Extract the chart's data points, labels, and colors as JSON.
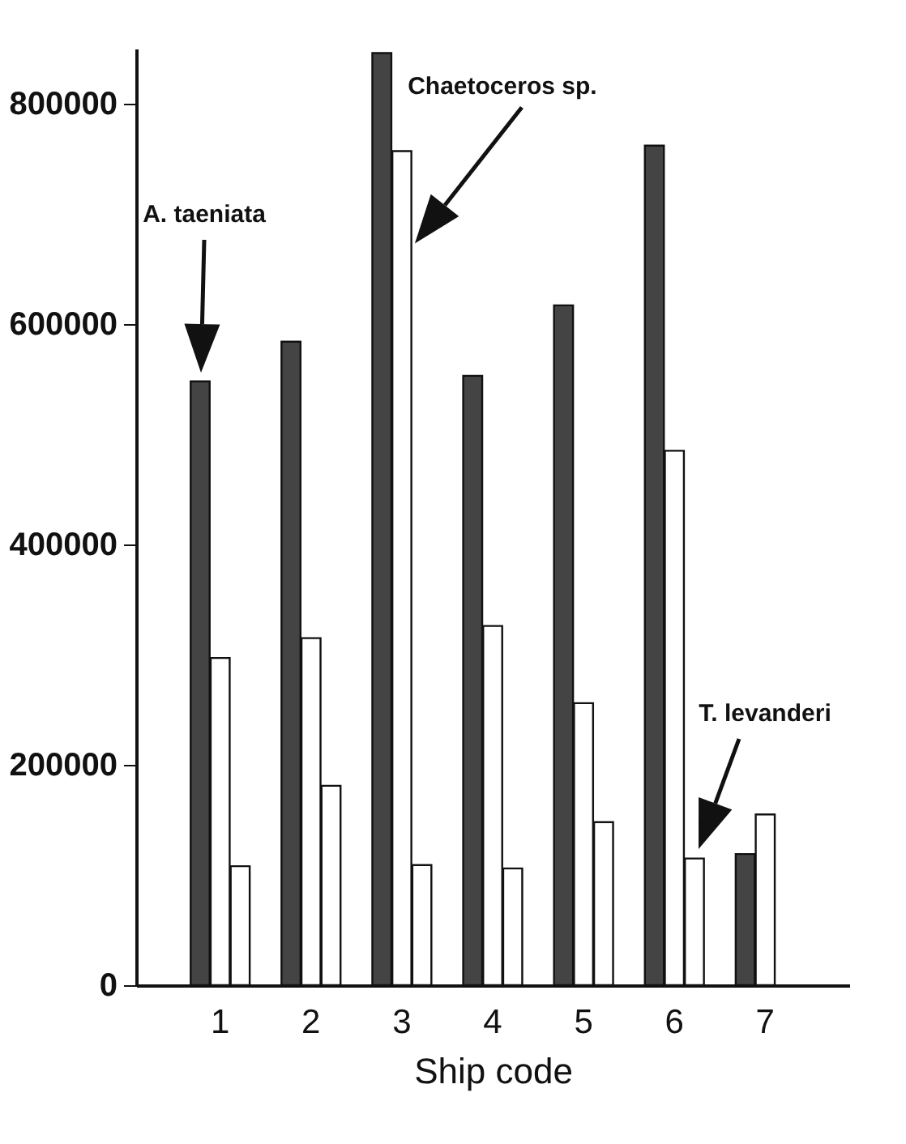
{
  "chart_data": {
    "type": "bar",
    "xlabel": "Ship code",
    "categories": [
      "1",
      "2",
      "3",
      "4",
      "5",
      "6",
      "7"
    ],
    "series": [
      {
        "color": "#444444",
        "values": [
          548000,
          584000,
          846000,
          553000,
          617000,
          762000,
          119000
        ]
      },
      {
        "color": "#ffffff",
        "values": [
          297000,
          315000,
          757000,
          326000,
          256000,
          485000,
          155000
        ]
      },
      {
        "color": "#ffffff",
        "values": [
          108000,
          181000,
          109000,
          106000,
          148000,
          115000,
          null
        ]
      }
    ],
    "ylim": [
      0,
      850000
    ],
    "yticks": [
      0,
      200000,
      400000,
      600000,
      800000
    ],
    "annotations": [
      "A. taeniata",
      {
        "text": "Chaetoceros sp.",
        "x": "3",
        "y": 757000
      },
      "T. levanderi"
    ]
  }
}
